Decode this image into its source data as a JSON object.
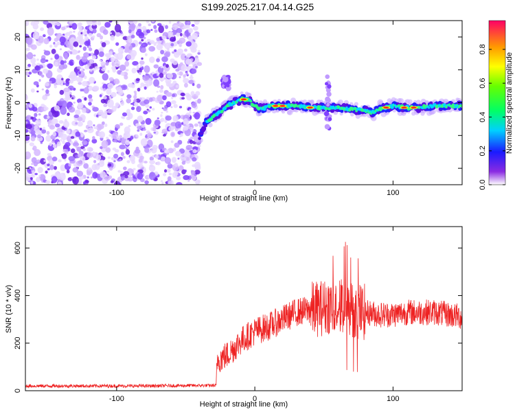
{
  "title": "S199.2025.217.04.14.G25",
  "chart_data": [
    {
      "type": "heatmap",
      "xlabel": "Height of straight line (km)",
      "ylabel": "Frequency (Hz)",
      "xlim": [
        -166,
        150
      ],
      "ylim": [
        -25,
        25
      ],
      "xticks": [
        -100,
        0,
        100
      ],
      "yticks": [
        -20,
        -10,
        0,
        10,
        20
      ],
      "noise_region_xmax": -40,
      "signal_track": {
        "x": [
          -40,
          -35,
          -30,
          -25,
          -20,
          -15,
          -10,
          -5,
          0,
          5,
          10,
          20,
          30,
          40,
          50,
          60,
          70,
          80,
          85,
          90,
          100,
          110,
          120,
          130,
          140,
          150
        ],
        "freq": [
          -10,
          -6,
          -4,
          -3,
          -1,
          0,
          1,
          1,
          -1,
          -2,
          -1,
          -1,
          -1,
          -1.5,
          -1.5,
          -1.5,
          -2,
          -2.5,
          -3,
          -2,
          -1,
          -1.5,
          -1.5,
          -1,
          -1,
          -1
        ]
      },
      "colorbar": {
        "label": "Normalized spectral amplitude",
        "ticks": [
          0.0,
          0.2,
          0.4,
          0.6,
          0.8
        ],
        "range": [
          0,
          0.97
        ]
      }
    },
    {
      "type": "line",
      "xlabel": "Height of straight line (km)",
      "ylabel": "SNR (10 * v/v)",
      "xlim": [
        -166,
        150
      ],
      "ylim": [
        0,
        690
      ],
      "xticks": [
        -100,
        0,
        100
      ],
      "yticks": [
        0,
        200,
        400,
        600
      ],
      "color": "#ee2222",
      "series_outline": {
        "x": [
          -166,
          -120,
          -80,
          -40,
          -28,
          -27,
          -20,
          -10,
          0,
          10,
          20,
          30,
          40,
          50,
          55,
          60,
          65,
          70,
          80,
          90,
          100,
          110,
          120,
          130,
          140,
          150
        ],
        "snr": [
          20,
          20,
          20,
          22,
          22,
          130,
          150,
          210,
          250,
          270,
          300,
          330,
          340,
          350,
          360,
          360,
          350,
          340,
          330,
          320,
          320,
          330,
          330,
          330,
          320,
          310
        ]
      }
    }
  ]
}
